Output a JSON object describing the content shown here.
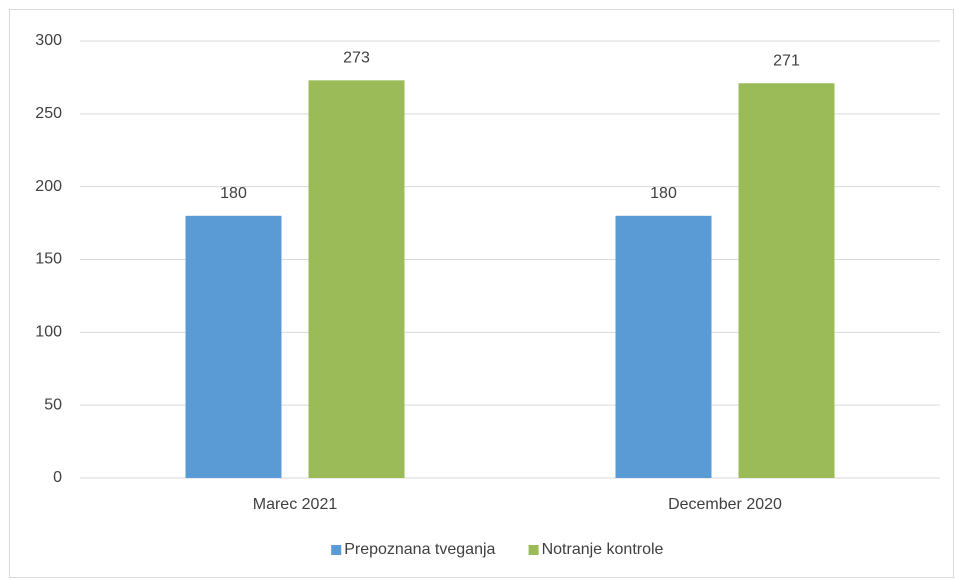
{
  "chart_data": {
    "type": "bar",
    "categories": [
      "Marec 2021",
      "December 2020"
    ],
    "series": [
      {
        "name": "Prepoznana tveganja",
        "color": "#5b9bd5",
        "values": [
          180,
          180
        ]
      },
      {
        "name": "Notranje kontrole",
        "color": "#9bbb59",
        "values": [
          273,
          271
        ]
      }
    ],
    "ylim": [
      0,
      300
    ],
    "yticks": [
      0,
      50,
      100,
      150,
      200,
      250,
      300
    ],
    "grid": true,
    "legend": "bottom"
  }
}
